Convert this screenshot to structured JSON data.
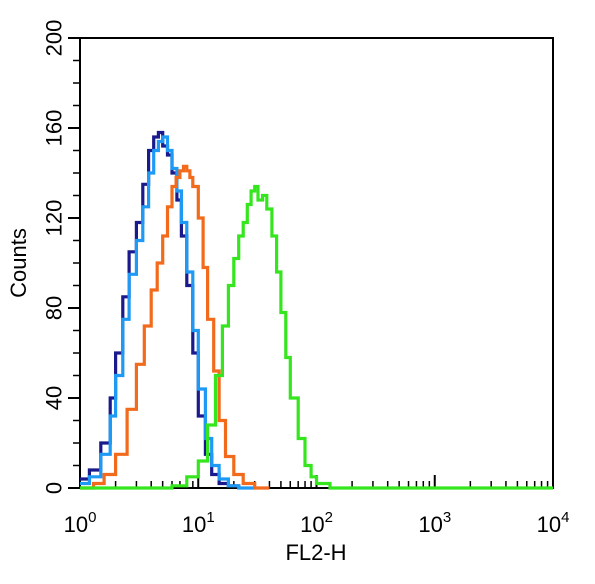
{
  "chart_data": {
    "type": "line",
    "xlabel": "FL2-H",
    "ylabel": "Counts",
    "xscale": "log",
    "xlim": [
      1,
      10000
    ],
    "ylim": [
      0,
      200
    ],
    "grid": false,
    "legend": "none",
    "x_ticks": [
      {
        "base": "10",
        "exp": "0",
        "value": 1
      },
      {
        "base": "10",
        "exp": "1",
        "value": 10
      },
      {
        "base": "10",
        "exp": "2",
        "value": 100
      },
      {
        "base": "10",
        "exp": "3",
        "value": 1000
      },
      {
        "base": "10",
        "exp": "4",
        "value": 10000
      }
    ],
    "y_ticks": [
      "0",
      "40",
      "80",
      "120",
      "160",
      "200"
    ],
    "series": [
      {
        "color": "#1a1a8c",
        "x": [
          1,
          1.2,
          1.5,
          1.8,
          2.0,
          2.3,
          2.6,
          3.0,
          3.4,
          3.8,
          4.2,
          4.6,
          5.0,
          5.5,
          6.0,
          6.6,
          7.2,
          8.0,
          9.0,
          10,
          11.5,
          13,
          15,
          18,
          22
        ],
        "y": [
          4,
          8,
          20,
          40,
          60,
          85,
          105,
          118,
          135,
          150,
          156,
          158,
          152,
          148,
          140,
          128,
          112,
          90,
          60,
          32,
          15,
          6,
          2,
          1,
          0
        ]
      },
      {
        "color": "#1e9af5",
        "x": [
          1,
          1.2,
          1.5,
          1.8,
          2.0,
          2.3,
          2.6,
          3.0,
          3.4,
          3.8,
          4.2,
          4.6,
          5.0,
          5.5,
          6.0,
          6.6,
          7.2,
          8.0,
          9.0,
          10,
          11.5,
          13,
          15,
          18,
          22,
          30
        ],
        "y": [
          2,
          5,
          15,
          32,
          50,
          75,
          95,
          110,
          125,
          140,
          150,
          154,
          156,
          150,
          142,
          132,
          118,
          96,
          70,
          44,
          22,
          10,
          4,
          1,
          0,
          0
        ]
      },
      {
        "color": "#f26a1b",
        "x": [
          1,
          1.3,
          1.6,
          2.0,
          2.5,
          3.0,
          3.5,
          4.0,
          4.5,
          5.0,
          5.5,
          6.0,
          6.5,
          7.0,
          7.5,
          8.0,
          8.5,
          9.0,
          10,
          11,
          12,
          13.5,
          15,
          17,
          20,
          24,
          30,
          40
        ],
        "y": [
          0,
          2,
          6,
          15,
          35,
          55,
          72,
          88,
          100,
          112,
          125,
          134,
          138,
          141,
          143,
          141,
          138,
          134,
          120,
          98,
          75,
          52,
          30,
          14,
          6,
          2,
          0,
          0
        ]
      },
      {
        "color": "#35e61e",
        "x": [
          1,
          4,
          6,
          8,
          10,
          12,
          14,
          16,
          18,
          20,
          22,
          24,
          26,
          28,
          30,
          32,
          35,
          38,
          42,
          46,
          50,
          55,
          60,
          70,
          80,
          90,
          100,
          130,
          180,
          250,
          10000
        ],
        "y": [
          0,
          0,
          1,
          5,
          12,
          28,
          50,
          72,
          90,
          102,
          112,
          118,
          126,
          132,
          134,
          128,
          130,
          124,
          112,
          96,
          78,
          58,
          40,
          22,
          10,
          5,
          2,
          0,
          0,
          0,
          0
        ]
      }
    ]
  }
}
